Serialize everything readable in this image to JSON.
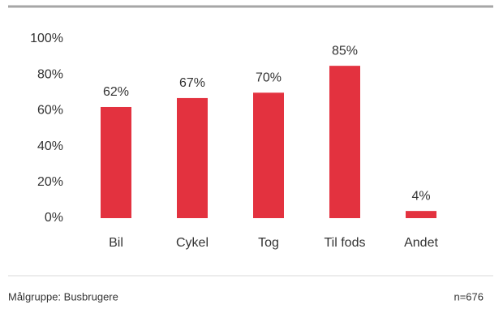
{
  "chart_data": {
    "type": "bar",
    "categories": [
      "Bil",
      "Cykel",
      "Tog",
      "Til fods",
      "Andet"
    ],
    "values": [
      62,
      67,
      70,
      85,
      4
    ],
    "value_labels": [
      "62%",
      "67%",
      "70%",
      "85%",
      "4%"
    ],
    "color": "#e3323f",
    "ylim": [
      0,
      100
    ],
    "yticks": [
      {
        "value": 0,
        "label": "0%"
      },
      {
        "value": 20,
        "label": "20%"
      },
      {
        "value": 40,
        "label": "40%"
      },
      {
        "value": 60,
        "label": "60%"
      },
      {
        "value": 80,
        "label": "80%"
      },
      {
        "value": 100,
        "label": "100%"
      }
    ],
    "grid": false
  },
  "footer": {
    "group": "Målgruppe: Busbrugere",
    "n": "n=676"
  }
}
